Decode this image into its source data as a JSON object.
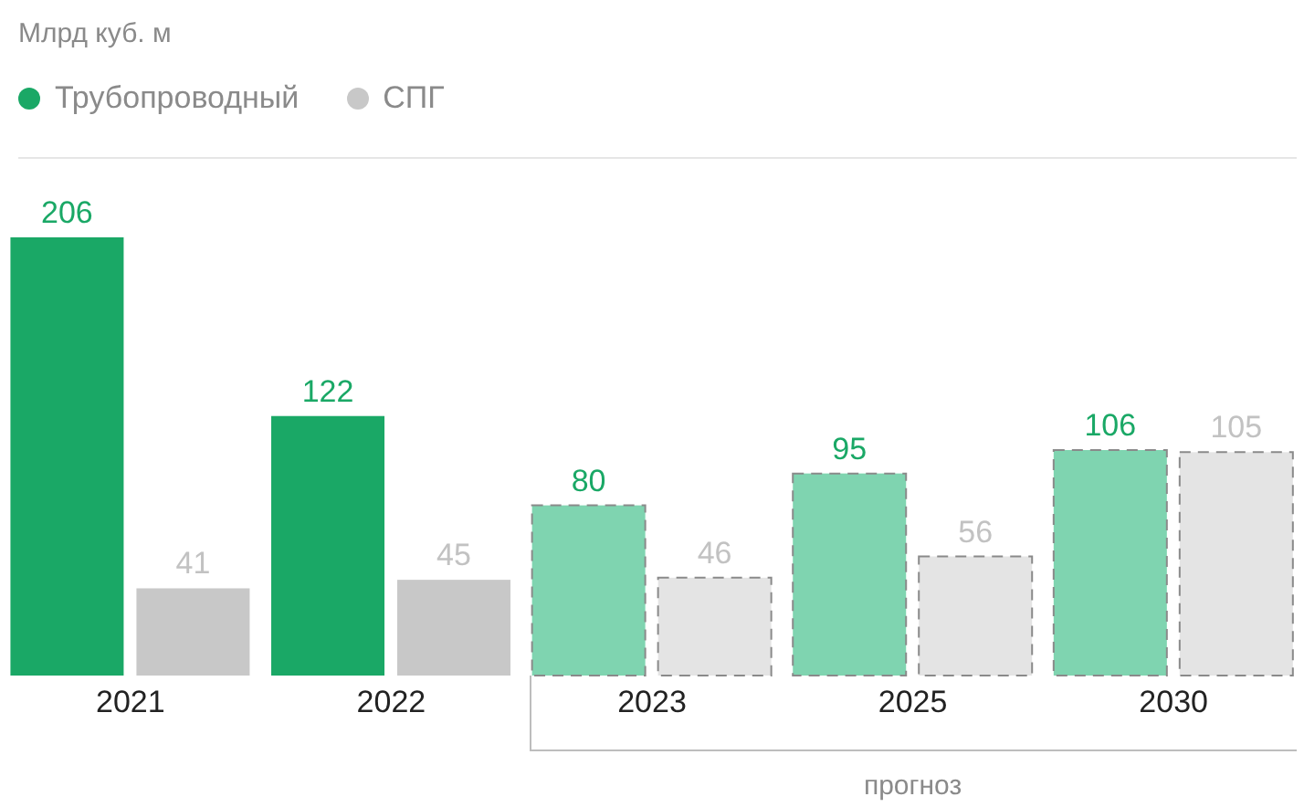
{
  "chart_data": {
    "type": "bar",
    "subtitle": "Млрд куб. м",
    "categories": [
      "2021",
      "2022",
      "2023",
      "2025",
      "2030"
    ],
    "series": [
      {
        "name": "Трубопроводный",
        "color": "#1aa866",
        "colors": [
          "#1aa866",
          "#1aa866",
          "#7fd4b0",
          "#7fd4b0",
          "#7fd4b0"
        ],
        "values": [
          206,
          122,
          80,
          95,
          106
        ]
      },
      {
        "name": "СПГ",
        "color": "#c8c8c8",
        "colors": [
          "#c8c8c8",
          "#c8c8c8",
          "#e4e4e4",
          "#e4e4e4",
          "#e4e4e4"
        ],
        "values": [
          41,
          45,
          46,
          56,
          105
        ]
      }
    ],
    "data_labels": true,
    "legend": "top left",
    "tick_labels": "x",
    "annotations": [
      "прогноз"
    ]
  }
}
